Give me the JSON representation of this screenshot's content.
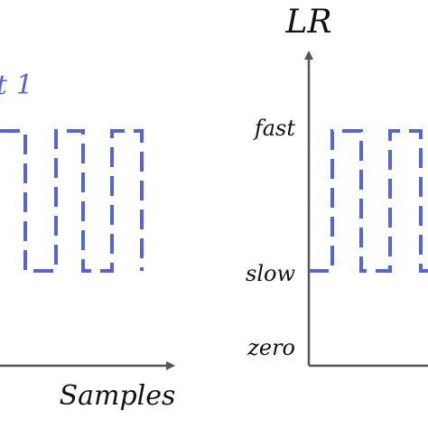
{
  "left_panel": {
    "legend": "t 1",
    "x_label": "Samples"
  },
  "right_panel": {
    "y_label": "LR",
    "levels": [
      "fast",
      "slow",
      "zero"
    ]
  }
}
